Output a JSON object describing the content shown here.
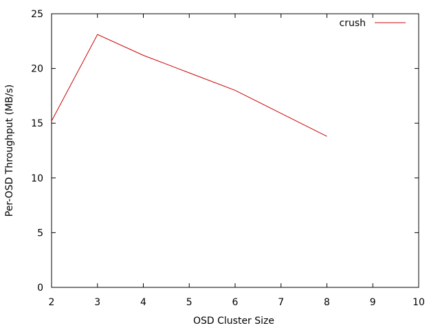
{
  "chart_data": {
    "type": "line",
    "xlabel": "OSD Cluster Size",
    "ylabel": "Per-OSD Throughput (MB/s)",
    "xlim": [
      2,
      10
    ],
    "ylim": [
      0,
      25
    ],
    "xticks": [
      2,
      3,
      4,
      5,
      6,
      7,
      8,
      9,
      10
    ],
    "yticks": [
      0,
      5,
      10,
      15,
      20,
      25
    ],
    "grid": false,
    "legend_position": "top-right",
    "series": [
      {
        "name": "crush",
        "color": "#cc0000",
        "x": [
          2,
          3,
          4,
          5,
          6,
          7,
          8
        ],
        "y": [
          15.2,
          23.1,
          21.2,
          19.6,
          18.0,
          15.9,
          13.8
        ]
      }
    ]
  }
}
